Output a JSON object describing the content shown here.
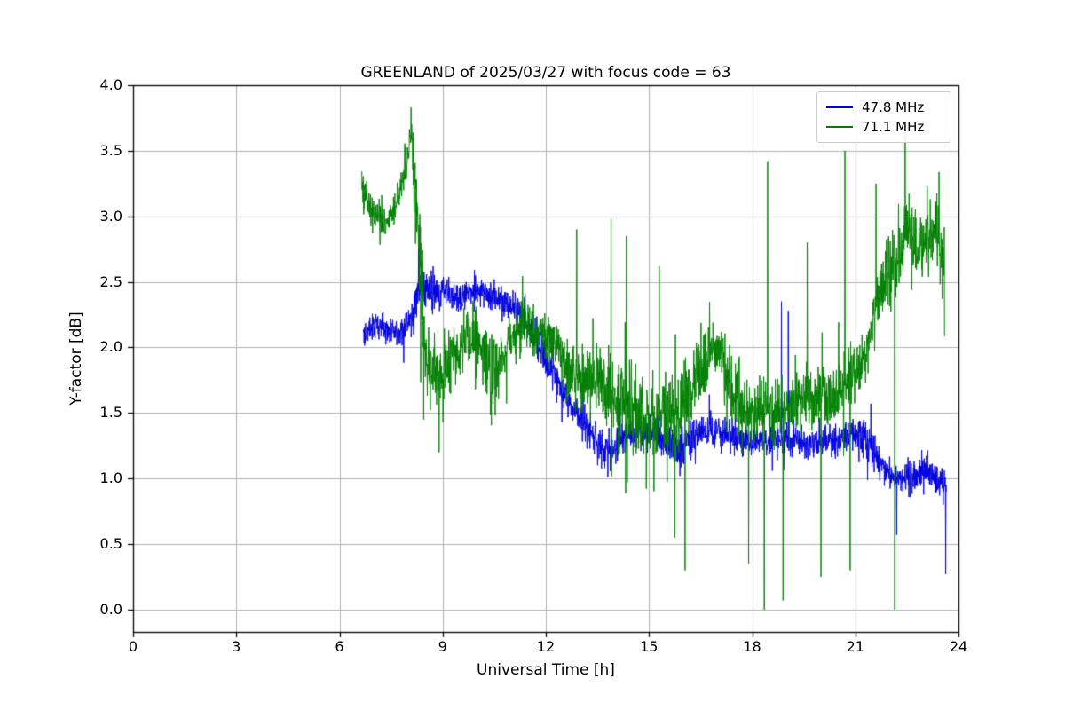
{
  "figure": {
    "title": "GREENLAND of 2025/03/27 with focus code = 63",
    "xlabel": "Universal Time [h]",
    "ylabel": "Y-factor [dB]"
  },
  "chart_data": {
    "type": "line",
    "title": "GREENLAND of 2025/03/27 with focus code = 63",
    "xlabel": "Universal Time [h]",
    "ylabel": "Y-factor [dB]",
    "xlim": [
      0,
      24
    ],
    "ylim": [
      -0.17,
      4.0
    ],
    "xticks": [
      0,
      3,
      6,
      9,
      12,
      15,
      18,
      21,
      24
    ],
    "xtick_labels": [
      "0",
      "3",
      "6",
      "9",
      "12",
      "15",
      "18",
      "21",
      "24"
    ],
    "yticks": [
      0.0,
      0.5,
      1.0,
      1.5,
      2.0,
      2.5,
      3.0,
      3.5,
      4.0
    ],
    "ytick_labels": [
      "0.0",
      "0.5",
      "1.0",
      "1.5",
      "2.0",
      "2.5",
      "3.0",
      "3.5",
      "4.0"
    ],
    "grid": true,
    "grid_color": "#b0b0b0",
    "legend_position": "upper right",
    "series": [
      {
        "name": "47.8 MHz",
        "color": "#0000e0",
        "t_start": 6.7,
        "t_end": 23.65,
        "anchors": [
          [
            6.7,
            2.12,
            0.1
          ],
          [
            7.2,
            2.17,
            0.1
          ],
          [
            7.8,
            2.12,
            0.1
          ],
          [
            8.1,
            2.2,
            0.14
          ],
          [
            8.35,
            2.5,
            0.16
          ],
          [
            8.6,
            2.42,
            0.14
          ],
          [
            9.0,
            2.42,
            0.12
          ],
          [
            9.5,
            2.38,
            0.12
          ],
          [
            10.0,
            2.42,
            0.1
          ],
          [
            10.5,
            2.4,
            0.1
          ],
          [
            10.9,
            2.32,
            0.1
          ],
          [
            11.3,
            2.25,
            0.12
          ],
          [
            11.7,
            2.1,
            0.14
          ],
          [
            12.0,
            1.9,
            0.12
          ],
          [
            12.3,
            1.75,
            0.12
          ],
          [
            12.6,
            1.6,
            0.1
          ],
          [
            13.0,
            1.45,
            0.12
          ],
          [
            13.4,
            1.3,
            0.14
          ],
          [
            13.8,
            1.2,
            0.14
          ],
          [
            14.2,
            1.3,
            0.12
          ],
          [
            14.6,
            1.35,
            0.1
          ],
          [
            15.0,
            1.35,
            0.12
          ],
          [
            15.4,
            1.3,
            0.12
          ],
          [
            15.8,
            1.25,
            0.14
          ],
          [
            16.2,
            1.3,
            0.12
          ],
          [
            16.6,
            1.35,
            0.12
          ],
          [
            17.0,
            1.38,
            0.12
          ],
          [
            17.4,
            1.32,
            0.12
          ],
          [
            17.8,
            1.28,
            0.1
          ],
          [
            18.2,
            1.3,
            0.1
          ],
          [
            18.6,
            1.28,
            0.1
          ],
          [
            19.0,
            1.3,
            0.12
          ],
          [
            19.4,
            1.28,
            0.1
          ],
          [
            19.8,
            1.25,
            0.1
          ],
          [
            20.2,
            1.28,
            0.1
          ],
          [
            20.6,
            1.3,
            0.1
          ],
          [
            21.0,
            1.35,
            0.12
          ],
          [
            21.3,
            1.3,
            0.14
          ],
          [
            21.6,
            1.15,
            0.12
          ],
          [
            21.9,
            1.05,
            0.1
          ],
          [
            22.3,
            1.0,
            0.1
          ],
          [
            22.7,
            1.02,
            0.12
          ],
          [
            23.1,
            1.05,
            0.12
          ],
          [
            23.4,
            1.0,
            0.1
          ],
          [
            23.65,
            0.95,
            0.12
          ]
        ],
        "spikes": [
          [
            8.3,
            2.78
          ],
          [
            18.85,
            2.35
          ],
          [
            19.05,
            2.28
          ],
          [
            21.45,
            1.57
          ],
          [
            22.2,
            0.57
          ],
          [
            23.63,
            0.27
          ]
        ]
      },
      {
        "name": "71.1 MHz",
        "color": "#008000",
        "t_start": 6.65,
        "t_end": 23.6,
        "anchors": [
          [
            6.65,
            3.25,
            0.15
          ],
          [
            6.9,
            3.05,
            0.12
          ],
          [
            7.1,
            3.0,
            0.12
          ],
          [
            7.35,
            2.95,
            0.1
          ],
          [
            7.6,
            3.05,
            0.1
          ],
          [
            7.85,
            3.25,
            0.1
          ],
          [
            8.0,
            3.45,
            0.15
          ],
          [
            8.1,
            3.6,
            0.2
          ],
          [
            8.2,
            3.2,
            0.3
          ],
          [
            8.35,
            2.6,
            0.35
          ],
          [
            8.5,
            2.0,
            0.3
          ],
          [
            8.7,
            1.85,
            0.25
          ],
          [
            8.95,
            1.75,
            0.3
          ],
          [
            9.2,
            1.9,
            0.25
          ],
          [
            9.5,
            2.0,
            0.2
          ],
          [
            9.8,
            2.1,
            0.2
          ],
          [
            10.1,
            2.0,
            0.25
          ],
          [
            10.4,
            1.75,
            0.3
          ],
          [
            10.7,
            1.9,
            0.2
          ],
          [
            11.0,
            2.05,
            0.2
          ],
          [
            11.3,
            2.15,
            0.18
          ],
          [
            11.6,
            2.1,
            0.18
          ],
          [
            12.0,
            2.1,
            0.18
          ],
          [
            12.4,
            1.95,
            0.2
          ],
          [
            12.8,
            1.8,
            0.22
          ],
          [
            13.2,
            1.72,
            0.22
          ],
          [
            13.6,
            1.68,
            0.25
          ],
          [
            14.0,
            1.62,
            0.28
          ],
          [
            14.4,
            1.55,
            0.3
          ],
          [
            14.8,
            1.5,
            0.3
          ],
          [
            15.2,
            1.5,
            0.28
          ],
          [
            15.6,
            1.52,
            0.28
          ],
          [
            16.0,
            1.55,
            0.3
          ],
          [
            16.4,
            1.8,
            0.28
          ],
          [
            16.8,
            2.0,
            0.25
          ],
          [
            17.1,
            1.95,
            0.25
          ],
          [
            17.4,
            1.7,
            0.25
          ],
          [
            17.8,
            1.55,
            0.22
          ],
          [
            18.2,
            1.5,
            0.2
          ],
          [
            18.6,
            1.5,
            0.2
          ],
          [
            19.0,
            1.55,
            0.2
          ],
          [
            19.4,
            1.6,
            0.22
          ],
          [
            19.8,
            1.6,
            0.22
          ],
          [
            20.2,
            1.62,
            0.22
          ],
          [
            20.6,
            1.68,
            0.25
          ],
          [
            21.0,
            1.8,
            0.2
          ],
          [
            21.3,
            1.95,
            0.18
          ],
          [
            21.6,
            2.3,
            0.2
          ],
          [
            21.9,
            2.55,
            0.22
          ],
          [
            22.2,
            2.7,
            0.25
          ],
          [
            22.5,
            2.85,
            0.25
          ],
          [
            22.8,
            2.75,
            0.25
          ],
          [
            23.1,
            2.8,
            0.22
          ],
          [
            23.35,
            2.9,
            0.18
          ],
          [
            23.6,
            2.6,
            0.35
          ]
        ],
        "spikes": [
          [
            8.08,
            3.83
          ],
          [
            8.45,
            1.45
          ],
          [
            8.9,
            1.2
          ],
          [
            12.9,
            2.9
          ],
          [
            13.9,
            2.98
          ],
          [
            14.35,
            2.85
          ],
          [
            15.3,
            2.62
          ],
          [
            15.75,
            0.55
          ],
          [
            16.05,
            0.3
          ],
          [
            17.9,
            0.35
          ],
          [
            18.35,
            0.0
          ],
          [
            18.45,
            3.42
          ],
          [
            18.9,
            0.07
          ],
          [
            19.6,
            2.8
          ],
          [
            20.0,
            0.25
          ],
          [
            20.7,
            3.5
          ],
          [
            20.85,
            0.3
          ],
          [
            21.6,
            3.25
          ],
          [
            22.15,
            0.0
          ],
          [
            22.45,
            3.7
          ]
        ]
      }
    ]
  }
}
